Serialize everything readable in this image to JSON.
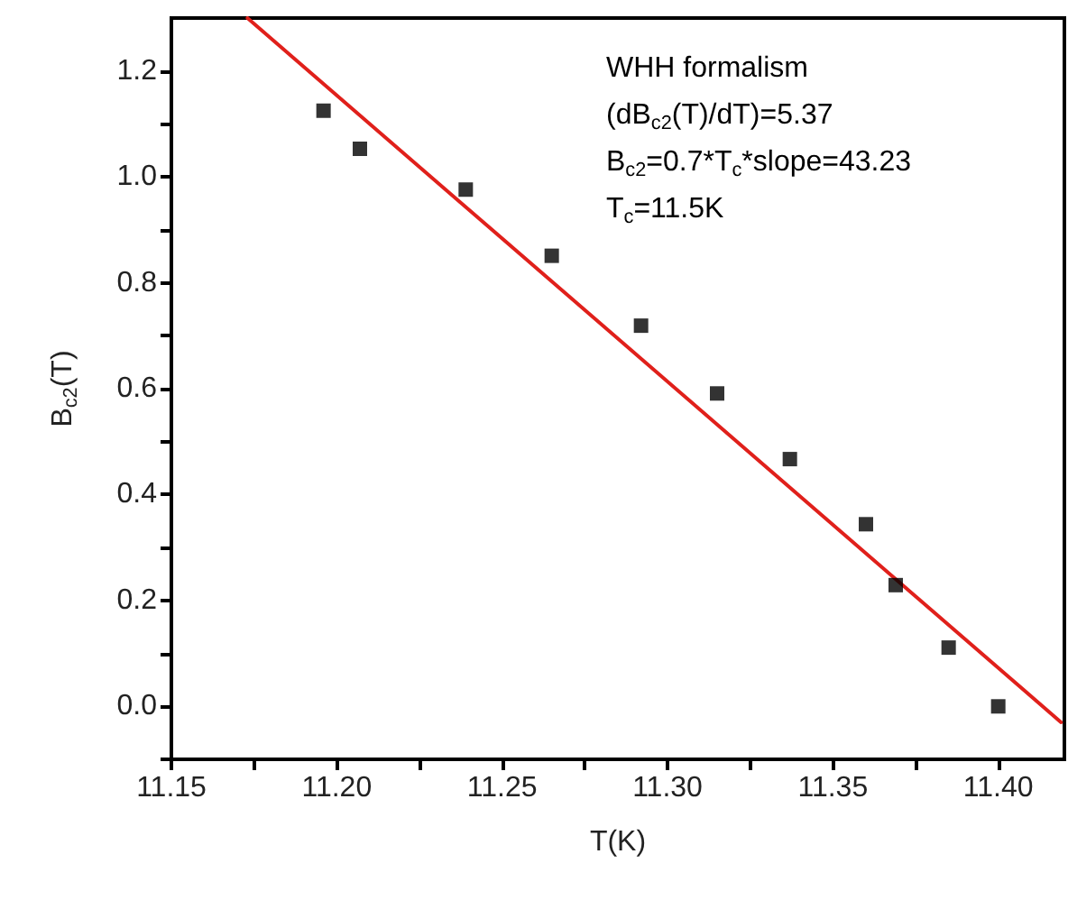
{
  "chart_data": {
    "type": "scatter",
    "xlabel": "T(K)",
    "ylabel": "B$_{c2}$(T)",
    "xlim": [
      11.15,
      11.42
    ],
    "ylim": [
      -0.1,
      1.3
    ],
    "xticks": [
      {
        "value": 11.15,
        "label": "11.15"
      },
      {
        "value": 11.175,
        "label": null
      },
      {
        "value": 11.2,
        "label": "11.20"
      },
      {
        "value": 11.225,
        "label": null
      },
      {
        "value": 11.25,
        "label": "11.25"
      },
      {
        "value": 11.275,
        "label": null
      },
      {
        "value": 11.3,
        "label": "11.30"
      },
      {
        "value": 11.325,
        "label": null
      },
      {
        "value": 11.35,
        "label": "11.35"
      },
      {
        "value": 11.375,
        "label": null
      },
      {
        "value": 11.4,
        "label": "11.40"
      }
    ],
    "yticks": [
      {
        "value": -0.1,
        "label": null
      },
      {
        "value": 0,
        "label": "0.0"
      },
      {
        "value": 0.1,
        "label": null
      },
      {
        "value": 0.2,
        "label": "0.2"
      },
      {
        "value": 0.3,
        "label": null
      },
      {
        "value": 0.4,
        "label": "0.4"
      },
      {
        "value": 0.5,
        "label": null
      },
      {
        "value": 0.6,
        "label": "0.6"
      },
      {
        "value": 0.7,
        "label": null
      },
      {
        "value": 0.8,
        "label": "0.8"
      },
      {
        "value": 0.9,
        "label": null
      },
      {
        "value": 1.0,
        "label": "1.0"
      },
      {
        "value": 1.1,
        "label": null
      },
      {
        "value": 1.2,
        "label": "1.2"
      }
    ],
    "grid": false,
    "marker": "square",
    "annotations": [
      "WHH formalism",
      "(dB$_{c2}$(T)/dT)=5.37",
      "B$_{c2}$=0.7*T$_{c}$*slope=43.23",
      "T$_{c}$=11.5K"
    ],
    "series": [
      {
        "color": "#000000",
        "x": [
          11.196,
          11.207,
          11.239,
          11.265,
          11.292,
          11.315,
          11.337,
          11.36,
          11.369,
          11.385,
          11.4
        ],
        "values": [
          1.125,
          1.053,
          0.976,
          0.851,
          0.719,
          0.591,
          0.467,
          0.344,
          0.229,
          0.111,
          0.0
        ]
      },
      {
        "type": "line",
        "color": "#e0201b",
        "line_style": "solid",
        "marker": "none",
        "x": [
          11.173,
          11.419
        ],
        "values": [
          1.3,
          -0.03
        ]
      }
    ]
  }
}
